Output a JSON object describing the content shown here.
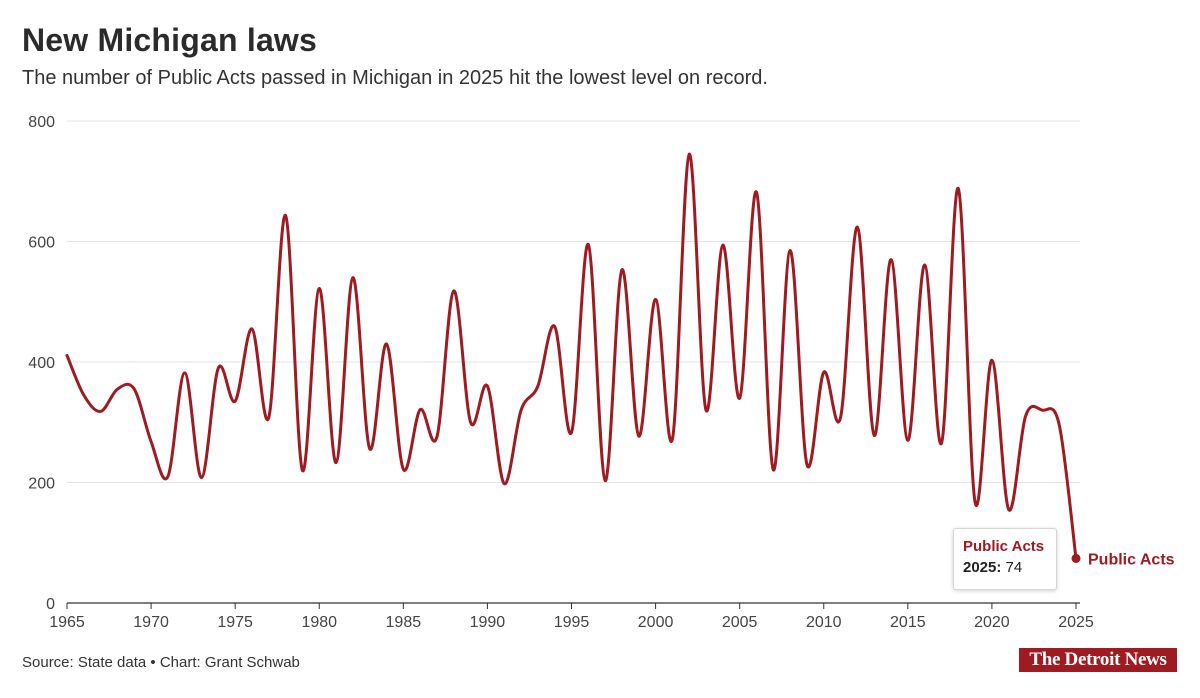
{
  "header": {
    "title": "New Michigan laws",
    "subtitle": "The number of Public Acts passed in Michigan in 2025 hit the lowest level on record."
  },
  "tooltip": {
    "series": "Public Acts",
    "year": "2025:",
    "value": "74"
  },
  "footer": {
    "source": "Source: State data • Chart: Grant Schwab",
    "logo_text": "The Detroit News"
  },
  "colors": {
    "line": "#9e1b22",
    "grid": "#e3e3e3"
  },
  "chart_data": {
    "type": "line",
    "title": "New Michigan laws",
    "subtitle": "The number of Public Acts passed in Michigan in 2025 hit the lowest level on record.",
    "xlabel": "",
    "ylabel": "",
    "xlim": [
      1965,
      2025
    ],
    "ylim": [
      0,
      800
    ],
    "x_ticks": [
      1965,
      1970,
      1975,
      1980,
      1985,
      1990,
      1995,
      2000,
      2005,
      2010,
      2015,
      2020,
      2025
    ],
    "y_ticks": [
      0,
      200,
      400,
      600,
      800
    ],
    "grid": true,
    "series": [
      {
        "name": "Public Acts",
        "end_label": "Public Acts",
        "x": [
          1965,
          1966,
          1967,
          1968,
          1969,
          1970,
          1971,
          1972,
          1973,
          1974,
          1975,
          1976,
          1977,
          1978,
          1979,
          1980,
          1981,
          1982,
          1983,
          1984,
          1985,
          1986,
          1987,
          1988,
          1989,
          1990,
          1991,
          1992,
          1993,
          1994,
          1995,
          1996,
          1997,
          1998,
          1999,
          2000,
          2001,
          2002,
          2003,
          2004,
          2005,
          2006,
          2007,
          2008,
          2009,
          2010,
          2011,
          2012,
          2013,
          2014,
          2015,
          2016,
          2017,
          2018,
          2019,
          2020,
          2021,
          2022,
          2023,
          2024,
          2025
        ],
        "values": [
          411,
          345,
          318,
          355,
          355,
          268,
          210,
          382,
          208,
          390,
          335,
          455,
          308,
          643,
          220,
          522,
          233,
          540,
          256,
          430,
          222,
          321,
          276,
          518,
          300,
          360,
          198,
          320,
          360,
          459,
          283,
          595,
          203,
          553,
          277,
          504,
          272,
          745,
          320,
          594,
          340,
          682,
          221,
          585,
          230,
          383,
          308,
          624,
          278,
          570,
          270,
          561,
          265,
          688,
          167,
          403,
          155,
          310,
          320,
          296,
          74
        ]
      }
    ],
    "annotations": [
      {
        "x": 2025,
        "y": 74,
        "text": "2025: 74"
      }
    ]
  }
}
